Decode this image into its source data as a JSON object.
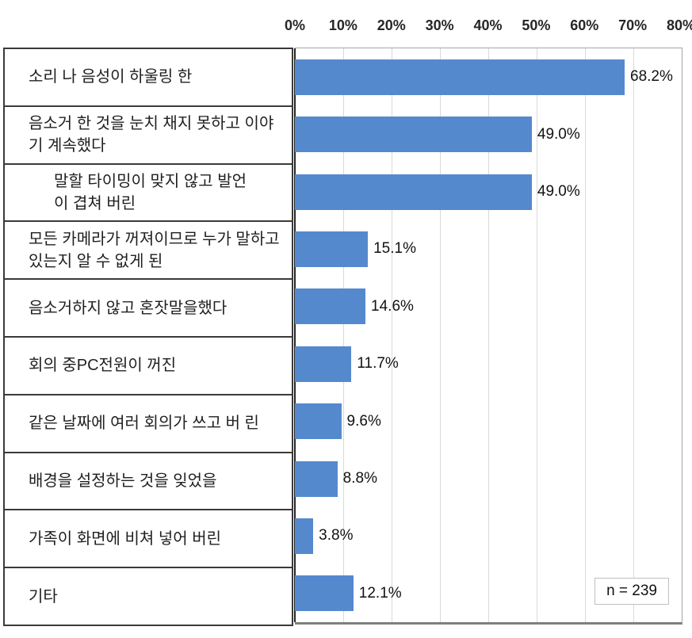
{
  "chart_data": {
    "type": "bar",
    "orientation": "horizontal",
    "title": "",
    "xlabel": "",
    "ylabel": "",
    "xlim": [
      0,
      80
    ],
    "x_ticks": [
      "0%",
      "10%",
      "20%",
      "30%",
      "40%",
      "50%",
      "60%",
      "70%",
      "80%"
    ],
    "grid": "vertical",
    "legend": "none",
    "bar_color": "#5589ce",
    "categories": [
      "소리 나 음성이 하울링 한",
      "음소거 한 것을 눈치 채지 못하고 이야기 계속했다",
      "말할 타이밍이 맞지 않고 발언 이 겹쳐 버린",
      "모든 카메라가 꺼져이므로 누가 말하고 있는지 알 수 없게 된",
      "음소거하지 않고 혼잣말을했다",
      "회의 중PC전원이 꺼진",
      "같은 날짜에 여러 회의가 쓰고 버 린",
      "배경을 설정하는 것을 잊었을",
      "가족이 화면에 비쳐 넣어 버린",
      "기타"
    ],
    "values": [
      68.2,
      49.0,
      49.0,
      15.1,
      14.6,
      11.7,
      9.6,
      8.8,
      3.8,
      12.1
    ],
    "value_labels": [
      "68.2%",
      "49.0%",
      "49.0%",
      "15.1%",
      "14.6%",
      "11.7%",
      "9.6%",
      "8.8%",
      "3.8%",
      "12.1%"
    ],
    "annotation": "n = 239"
  },
  "colors": {
    "bar": "#5589ce",
    "gridline": "#d9d9d9",
    "zero_axis": "#262626",
    "plot_border": "#a6a6a6",
    "plot_bottom_border": "#7f7f7f",
    "table_border": "#3a3a3a",
    "text": "#262626"
  }
}
